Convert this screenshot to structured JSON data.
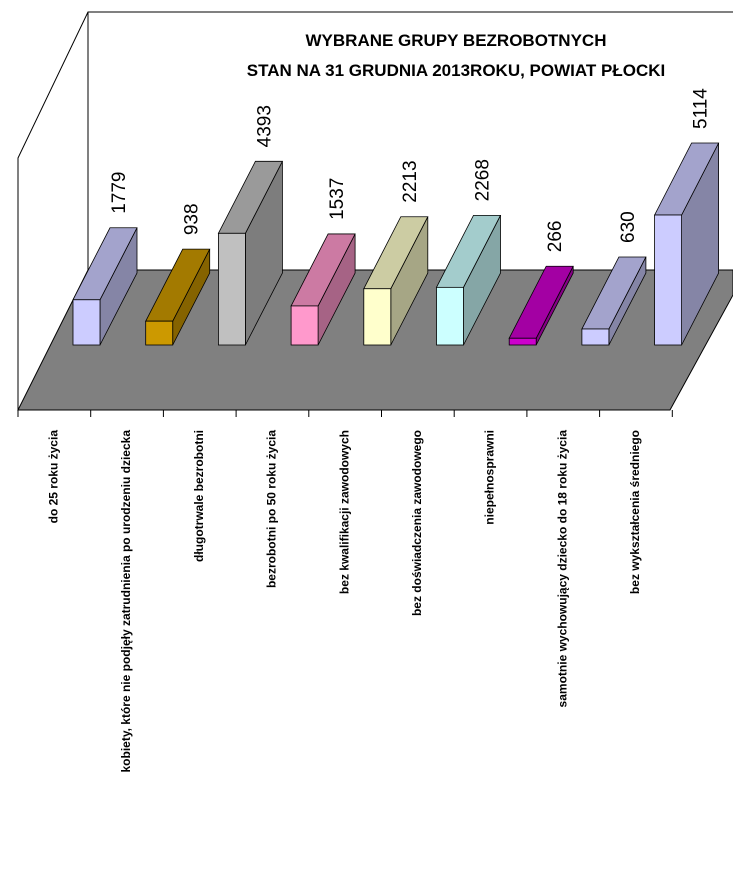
{
  "chart_data": {
    "type": "bar3d",
    "title": [
      "WYBRANE GRUPY BEZROBOTNYCH",
      "STAN NA 31 GRUDNIA 2013ROKU, POWIAT PŁOCKI"
    ],
    "categories": [
      "do 25 roku życia",
      "kobiety, które nie podjęły zatrudnienia po urodzeniu dziecka",
      "długotrwale bezrobotni",
      "bezrobotni po 50 roku życia",
      "bez kwalifikacji zawodowych",
      "bez doświadczenia zawodowego",
      "niepełnosprawni",
      "samotnie wychowujący dziecko do 18 roku życia",
      "bez wykształcenia średniego"
    ],
    "values": [
      1779,
      938,
      4393,
      1537,
      2213,
      2268,
      266,
      630,
      5114
    ],
    "colors": [
      "#ccccff",
      "#cc9900",
      "#c0c0c0",
      "#ff99cc",
      "#ffffcc",
      "#ccffff",
      "#cc00cc",
      "#ccccff",
      "#ccccff"
    ],
    "floor_color": "#808080"
  }
}
